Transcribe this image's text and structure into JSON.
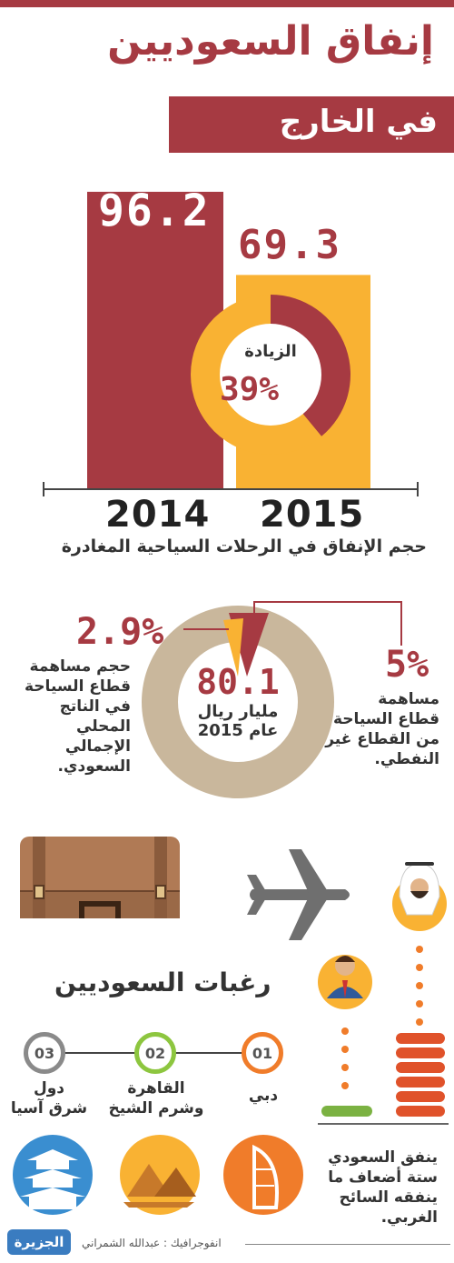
{
  "title": {
    "line1": "إنفاق السعوديين",
    "line2": "في الخارج"
  },
  "colors": {
    "crimson": "#a63a42",
    "amber": "#f9b233",
    "beige": "#c9b79c",
    "orange": "#f07c2a",
    "green": "#8dc63f"
  },
  "chart_data": [
    {
      "type": "bar",
      "categories": [
        "2014",
        "2015"
      ],
      "values": [
        96.2,
        69.3
      ],
      "value_labels": [
        "96.2",
        "69.3"
      ],
      "caption": "حجم الإنفاق في الرحلات السياحية المغادرة",
      "ylim": [
        0,
        100
      ]
    },
    {
      "type": "pie",
      "center_label": "الزيادة",
      "center_value": "39%",
      "values": [
        39,
        61
      ]
    },
    {
      "type": "pie",
      "center_value": "80.1",
      "center_unit": "مليار ريال",
      "center_year": "عام 2015",
      "slices": [
        {
          "value": 2.9,
          "label": "2.9%"
        },
        {
          "value": 5,
          "label": "5%"
        }
      ]
    }
  ],
  "gdp": {
    "left_pct": "2.9%",
    "left_text": [
      "حجم مساهمة",
      "قطاع السياحة",
      "في الناتج",
      "المحلي",
      "الإجمالي",
      "السعودي."
    ],
    "right_pct": "5%",
    "right_text": [
      "مساهمة",
      "قطاع السياحة",
      "من القطاع غير",
      "النفطي."
    ]
  },
  "destinations": {
    "heading": "رغبات السعوديين",
    "items": [
      {
        "num": "01",
        "label": [
          "دبي"
        ],
        "color": "#f07c2a"
      },
      {
        "num": "02",
        "label": [
          "القاهرة",
          "وشرم الشيخ"
        ],
        "color": "#8dc63f"
      },
      {
        "num": "03",
        "label": [
          "دول",
          "شرق آسيا"
        ],
        "color": "#8a8a8a"
      }
    ]
  },
  "comparison": {
    "text": [
      "ينفق السعودي",
      "ستة أضعاف ما",
      "ينفقه السائح",
      "الغربي."
    ]
  },
  "footer": {
    "credit": "انفوجرافيك : عبدالله الشمراني",
    "logo": "الجزيرة"
  }
}
